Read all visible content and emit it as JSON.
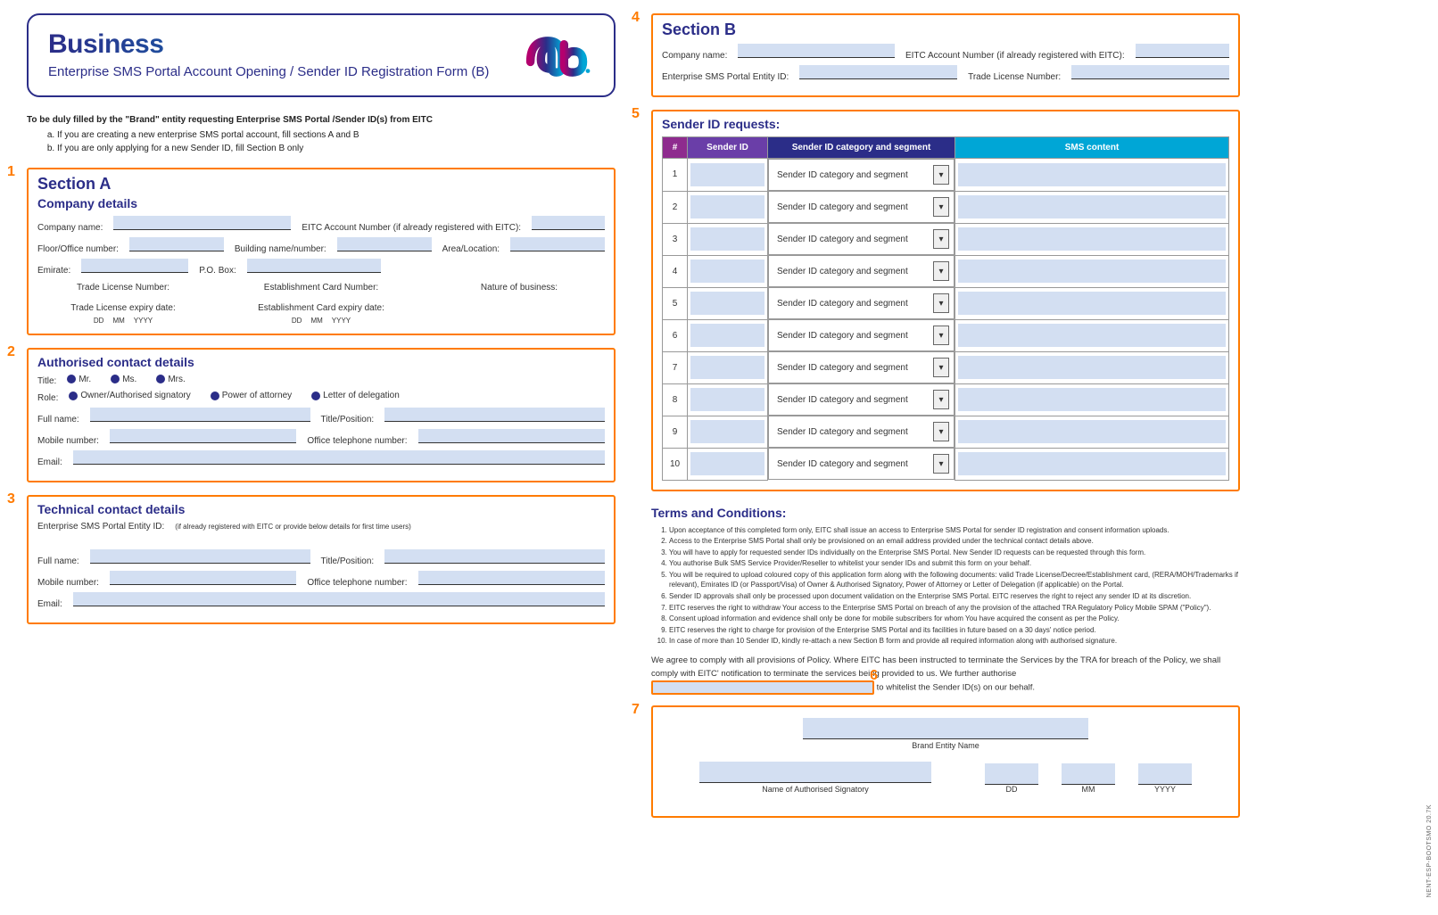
{
  "header": {
    "title": "Business",
    "subtitle": "Enterprise SMS Portal Account Opening / Sender ID Registration Form (B)"
  },
  "instructions": {
    "lead": "To be duly filled by the \"Brand\" entity requesting Enterprise SMS Portal /Sender ID(s) from EITC",
    "a": "If you are creating a new enterprise SMS portal account, fill sections A and B",
    "b": "If you are only applying for a new Sender ID, fill Section B only"
  },
  "markers": {
    "m1": "1",
    "m2": "2",
    "m3": "3",
    "m4": "4",
    "m5": "5",
    "m6": "6",
    "m7": "7"
  },
  "sectionA": {
    "title": "Section A",
    "company_details_title": "Company details",
    "labels": {
      "company_name": "Company name:",
      "eitc_account": "EITC Account Number (if already registered with EITC):",
      "floor": "Floor/Office number:",
      "building": "Building name/number:",
      "area": "Area/Location:",
      "emirate": "Emirate:",
      "pobox": "P.O. Box:",
      "tln": "Trade License Number:",
      "ecn": "Establishment Card Number:",
      "nob": "Nature of business:",
      "tle": "Trade License expiry date:",
      "ece": "Establishment Card expiry date:",
      "dd": "DD",
      "mm": "MM",
      "yyyy": "YYYY"
    }
  },
  "auth": {
    "title": "Authorised contact details",
    "title_label": "Title:",
    "mr": "Mr.",
    "ms": "Ms.",
    "mrs": "Mrs.",
    "role_label": "Role:",
    "r1": "Owner/Authorised signatory",
    "r2": "Power of attorney",
    "r3": "Letter of delegation",
    "fullname": "Full name:",
    "titlepos": "Title/Position:",
    "mobile": "Mobile number:",
    "office": "Office telephone number:",
    "email": "Email:"
  },
  "tech": {
    "title": "Technical contact details",
    "entity_label": "Enterprise SMS Portal Entity ID:",
    "entity_hint": "(if already registered with EITC or provide below details for first time users)"
  },
  "sectionB": {
    "title": "Section B",
    "company_name": "Company name:",
    "eitc": "EITC Account Number (if already registered with EITC):",
    "entity": "Enterprise SMS Portal Entity ID:",
    "tln": "Trade License Number:"
  },
  "sender": {
    "title": "Sender ID requests:",
    "col_num": "#",
    "col_id": "Sender ID",
    "col_cat": "Sender ID category and segment",
    "col_sms": "SMS content",
    "cat_placeholder": "Sender ID category and segment",
    "rows": [
      "1",
      "2",
      "3",
      "4",
      "5",
      "6",
      "7",
      "8",
      "9",
      "10"
    ]
  },
  "terms": {
    "title": "Terms and Conditions:",
    "items": [
      "Upon acceptance of this completed form only, EITC shall issue an access to Enterprise SMS Portal for sender ID registration and consent information uploads.",
      "Access to the Enterprise SMS Portal shall only be provisioned on an email address provided under the technical contact details above.",
      "You will have to apply for requested sender IDs individually on the Enterprise SMS Portal. New Sender ID requests can be requested through this form.",
      "You authorise Bulk SMS Service Provider/Reseller to whitelist your sender IDs and submit this form on your behalf.",
      "You will be required to upload coloured copy of this application form along with the following documents: valid Trade License/Decree/Establishment card, (RERA/MOH/Trademarks if relevant), Emirates ID (or Passport/Visa) of Owner & Authorised Signatory, Power of Attorney or Letter of Delegation (if applicable) on the Portal.",
      "Sender ID approvals shall only be processed upon document validation on the Enterprise SMS Portal. EITC reserves the right to reject any sender ID at its discretion.",
      "EITC reserves the right to withdraw Your access to the Enterprise SMS Portal on breach of any the provision of the attached TRA Regulatory Policy Mobile SPAM (\"Policy\").",
      "Consent upload information and evidence shall only be done for mobile subscribers for whom You have acquired the consent as per the Policy.",
      "EITC reserves the right to charge for provision of the Enterprise SMS Portal and its facilities in future based on a 30 days' notice period.",
      "In case of more than 10 Sender ID, kindly re-attach a new Section B form and provide all required information along with authorised signature."
    ]
  },
  "agree": {
    "p1": "We  agree to comply with all provisions of Policy. Where EITC has been instructed to terminate the Services by the TRA for breach of the Policy, we shall comply with EITC' notification to terminate the services being provided to us. We further authorise",
    "p2": "to whitelist the Sender ID(s) on our behalf."
  },
  "sig": {
    "brand": "Brand Entity Name",
    "signatory": "Name of Authorised Signatory",
    "dd": "DD",
    "mm": "MM",
    "yyyy": "YYYY"
  },
  "side": "NENT-ESP-BOOTSMO 20.7K",
  "colors": {
    "primary": "#2b2d88",
    "accent": "#00a6d6",
    "orange": "#ff7b00",
    "input_bg": "#d3dff2",
    "magenta": "#8e2b8e",
    "purple": "#6a3ea8"
  }
}
